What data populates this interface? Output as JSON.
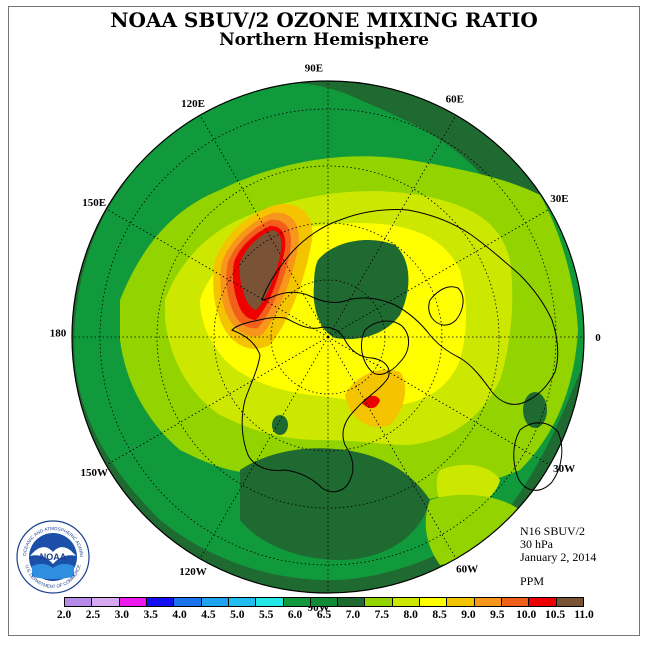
{
  "title": "NOAA SBUV/2 OZONE MIXING RATIO",
  "subtitle": "Northern Hemisphere",
  "info": {
    "instrument": "N16 SBUV/2",
    "pressure": "30 hPa",
    "date": "January 2, 2014",
    "units": "PPM"
  },
  "longitude_labels": [
    "90E",
    "60E",
    "30E",
    "0",
    "30W",
    "60W",
    "90W",
    "120W",
    "150W",
    "180",
    "150E",
    "120E"
  ],
  "colorbar": {
    "ticks": [
      "2.0",
      "2.5",
      "3.0",
      "3.5",
      "4.0",
      "4.5",
      "5.0",
      "5.5",
      "6.0",
      "6.5",
      "7.0",
      "7.5",
      "8.0",
      "8.5",
      "9.0",
      "9.5",
      "10.0",
      "10.5",
      "11.0"
    ],
    "colors": [
      "#b98be8",
      "#d7a9f2",
      "#ee19ee",
      "#1010f0",
      "#1a73e8",
      "#1ea4ef",
      "#22bdf0",
      "#25e8e6",
      "#119a3c",
      "#0f8a35",
      "#1f6a30",
      "#93d300",
      "#cde800",
      "#ffff00",
      "#f5c400",
      "#f7961a",
      "#f25f1a",
      "#ee0000",
      "#7a5236"
    ]
  },
  "logo_text": {
    "center": "NOAA",
    "ring_top": "NATIONAL OCEANIC AND ATMOSPHERIC ADMINISTRATION",
    "ring_bottom": "U.S. DEPARTMENT OF COMMERCE"
  }
}
